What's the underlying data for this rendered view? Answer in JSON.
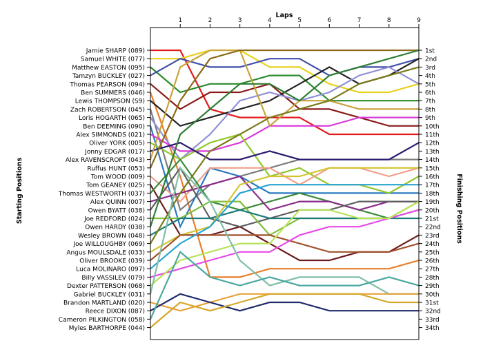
{
  "chart_data": {
    "type": "line",
    "title": "",
    "xlabel": "Laps",
    "ylabel_left": "Starting Positions",
    "ylabel_right": "Finishing Positions",
    "x_ticks": [
      1,
      2,
      3,
      4,
      5,
      6,
      7,
      8,
      9
    ],
    "xlim": [
      0,
      9
    ],
    "ylim": [
      1,
      34
    ],
    "y_inverted": true,
    "grid": false,
    "legend": "none",
    "starting_positions": [
      "Jamie SHARP (089)",
      "Samuel WHITE (077)",
      "Matthew EASTON (095)",
      "Tamzyn BUCKLEY (027)",
      "Thomas PEARSON (094)",
      "Ben SUMMERS (046)",
      "Lewis THOMPSON (S9)",
      "Zach ROBERTSON (045)",
      "Loris HOGARTH (065)",
      "Ben DEEMING (090)",
      "Alex SIMMONDS (021)",
      "Oliver YORK (005)",
      "Jonny EDGAR (017)",
      "Alex RAVENSCROFT (043)",
      "Ruffus HUNT (053)",
      "Tom WOOD (009)",
      "Tom GEANEY (025)",
      "Thomas WESTWORTH (037)",
      "Alex QUINN (007)",
      "Owen BYATT (038)",
      "Joe REDFORD (024)",
      "Owen HARDY (038)",
      "Wesley BROWN (048)",
      "Joe WILLOUGHBY (069)",
      "Angus MOULSDALE (033)",
      "Oliver BROOKE (039)",
      "Luca MOLINARO (097)",
      "Billy VASSILEV (079)",
      "Dexter PATTERSON (068)",
      "Gabriel BUCKLEY (031)",
      "Brandon MARTLAND (020)",
      "Reece DIXON (087)",
      "Cameron PILKINGTON (058)",
      "Myles BARTHORPE (044)"
    ],
    "finishing_positions": [
      "1st",
      "2nd",
      "3rd",
      "4th",
      "5th",
      "6th",
      "7th",
      "8th",
      "9th",
      "10th",
      "11th",
      "12th",
      "13th",
      "14th",
      "15th",
      "16th",
      "17th",
      "18th",
      "19th",
      "20th",
      "21st",
      "22nd",
      "23rd",
      "24th",
      "25th",
      "26th",
      "27th",
      "28th",
      "29th",
      "30th",
      "31st",
      "32nd",
      "33rd",
      "34th"
    ],
    "series": [
      {
        "color": "#e31a1c",
        "values": [
          1,
          1,
          8,
          9,
          9,
          9,
          11,
          11,
          11,
          11
        ]
      },
      {
        "color": "#e7d21c",
        "values": [
          2,
          2,
          1,
          1,
          3,
          3,
          5,
          6,
          6,
          5
        ]
      },
      {
        "color": "#2d8a2d",
        "values": [
          3,
          6,
          5,
          5,
          4,
          4,
          7,
          7,
          7,
          7
        ]
      },
      {
        "color": "#3f4fa8",
        "values": [
          4,
          2,
          3,
          3,
          2,
          2,
          4,
          3,
          3,
          2
        ]
      },
      {
        "color": "#8b1a1a",
        "values": [
          5,
          8,
          6,
          6,
          5,
          8,
          8,
          9,
          10,
          10
        ]
      },
      {
        "color": "#e87e2a",
        "values": [
          6,
          16,
          28,
          28,
          27,
          27,
          27,
          27,
          27,
          26
        ]
      },
      {
        "color": "#222222",
        "values": [
          7,
          10,
          9,
          8,
          7,
          5,
          3,
          5,
          4,
          2
        ]
      },
      {
        "color": "#7b7b7b",
        "values": [
          8,
          20,
          17,
          16,
          15,
          14,
          14,
          14,
          14,
          14
        ]
      },
      {
        "color": "#8f8fd8",
        "values": [
          9,
          14,
          11,
          7,
          6,
          7,
          6,
          4,
          3,
          5
        ]
      },
      {
        "color": "#2a7abf",
        "values": [
          10,
          22,
          15,
          16,
          18,
          18,
          18,
          18,
          18,
          18
        ]
      },
      {
        "color": "#d83bd8",
        "values": [
          11,
          13,
          13,
          12,
          10,
          10,
          10,
          9,
          9,
          9
        ]
      },
      {
        "color": "#8fc72c",
        "values": [
          12,
          14,
          12,
          11,
          16,
          15,
          17,
          17,
          18,
          16
        ]
      },
      {
        "color": "#2b1a6e",
        "values": [
          13,
          12,
          14,
          14,
          13,
          14,
          14,
          14,
          14,
          12
        ]
      },
      {
        "color": "#c8a23c",
        "values": [
          14,
          3,
          1,
          1,
          10,
          7,
          7,
          8,
          8,
          8
        ]
      },
      {
        "color": "#8b6914",
        "values": [
          15,
          7,
          2,
          1,
          1,
          1,
          1,
          1,
          1,
          1
        ]
      },
      {
        "color": "#f0a08a",
        "values": [
          16,
          19,
          15,
          15,
          15,
          17,
          15,
          15,
          16,
          15
        ]
      },
      {
        "color": "#6b1a1a",
        "values": [
          17,
          23,
          23,
          22,
          24,
          26,
          26,
          25,
          25,
          23
        ]
      },
      {
        "color": "#3a8a3a",
        "values": [
          18,
          14,
          19,
          20,
          19,
          18,
          19,
          20,
          21,
          20
        ]
      },
      {
        "color": "#8a2a8a",
        "values": [
          19,
          18,
          17,
          16,
          20,
          19,
          19,
          20,
          19,
          19
        ]
      },
      {
        "color": "#5e5e5e",
        "values": [
          20,
          15,
          21,
          22,
          21,
          20,
          20,
          19,
          19,
          19
        ]
      },
      {
        "color": "#7fbf3f",
        "values": [
          21,
          21,
          19,
          19,
          23,
          21,
          21,
          21,
          21,
          19
        ]
      },
      {
        "color": "#2e7d32",
        "values": [
          22,
          11,
          8,
          5,
          5,
          7,
          4,
          3,
          2,
          1
        ]
      },
      {
        "color": "#1a7a7a",
        "values": [
          23,
          21,
          21,
          20,
          21,
          21,
          21,
          21,
          21,
          21
        ]
      },
      {
        "color": "#7a7a1a",
        "values": [
          24,
          18,
          13,
          11,
          9,
          8,
          7,
          5,
          4,
          3
        ]
      },
      {
        "color": "#d4c432",
        "values": [
          25,
          23,
          22,
          17,
          16,
          16,
          15,
          15,
          15,
          15
        ]
      },
      {
        "color": "#a0522d",
        "values": [
          26,
          23,
          23,
          23,
          23,
          24,
          25,
          25,
          25,
          24
        ]
      },
      {
        "color": "#2aa3d4",
        "values": [
          27,
          24,
          22,
          18,
          17,
          17,
          17,
          17,
          17,
          17
        ]
      },
      {
        "color": "#e84ae8",
        "values": [
          28,
          27,
          26,
          25,
          25,
          23,
          22,
          22,
          21,
          20
        ]
      },
      {
        "color": "#b8e35a",
        "values": [
          29,
          26,
          25,
          24,
          24,
          20,
          20,
          21,
          21,
          19
        ]
      },
      {
        "color": "#7fbfa8",
        "values": [
          30,
          15,
          19,
          26,
          29,
          28,
          28,
          28,
          30,
          30
        ]
      },
      {
        "color": "#e8a23a",
        "values": [
          31,
          32,
          31,
          30,
          30,
          30,
          30,
          30,
          30,
          30
        ]
      },
      {
        "color": "#1f2a6b",
        "values": [
          32,
          30,
          31,
          32,
          31,
          31,
          32,
          32,
          32,
          32
        ]
      },
      {
        "color": "#4aa8a0",
        "values": [
          33,
          25,
          28,
          29,
          28,
          29,
          29,
          29,
          28,
          29
        ]
      },
      {
        "color": "#d4a82a",
        "values": [
          34,
          31,
          32,
          31,
          30,
          30,
          30,
          30,
          31,
          31
        ]
      }
    ]
  }
}
